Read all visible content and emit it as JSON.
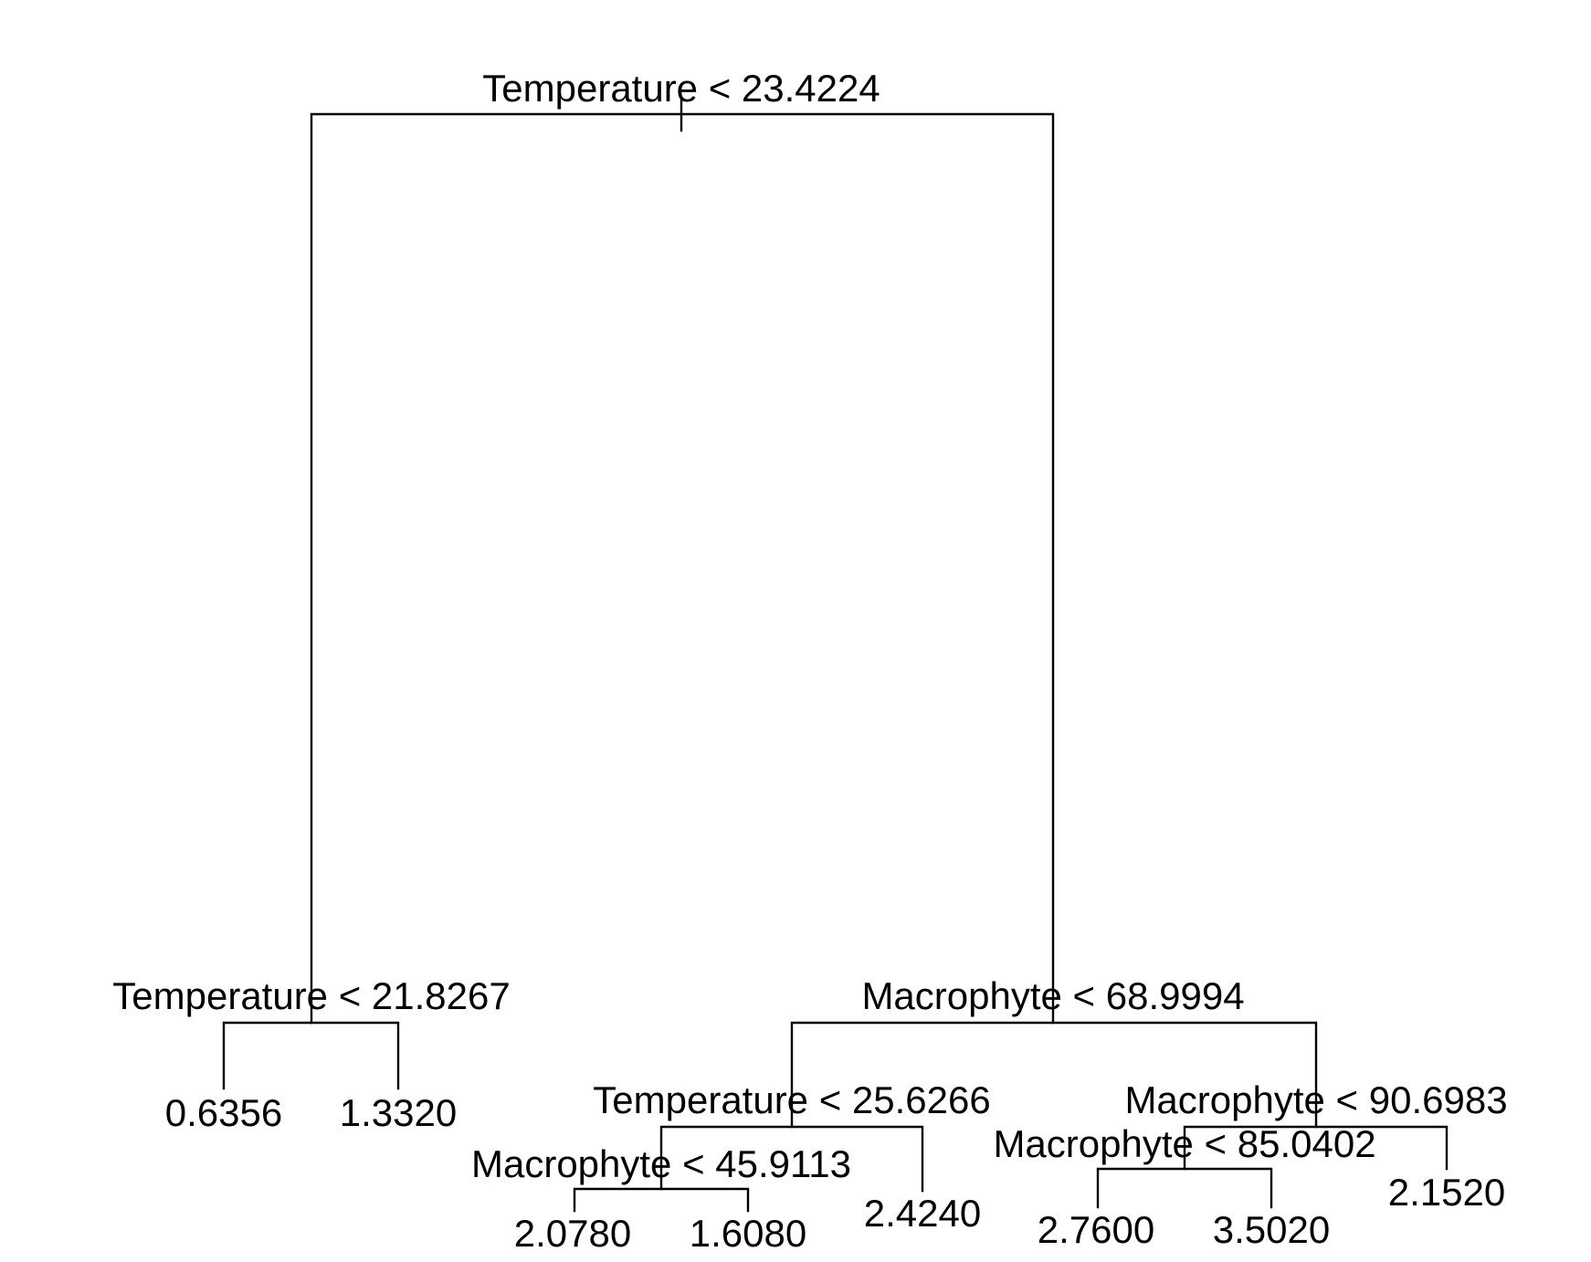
{
  "tree": {
    "line_color": "#000000",
    "splits": {
      "root": "Temperature < 23.4224",
      "left": "Temperature < 21.8267",
      "right": "Macrophyte < 68.9994",
      "right_left": "Temperature < 25.6266",
      "right_left_left": "Macrophyte < 45.9113",
      "right_right": "Macrophyte < 90.6983",
      "right_right_left": "Macrophyte < 85.0402"
    },
    "leaves": {
      "left_left": "0.6356",
      "left_right": "1.3320",
      "right_left_left_left": "2.0780",
      "right_left_left_right": "1.6080",
      "right_left_right": "2.4240",
      "right_right_left_left": "2.7600",
      "right_right_left_right": "3.5020",
      "right_right_right": "2.1520"
    }
  }
}
